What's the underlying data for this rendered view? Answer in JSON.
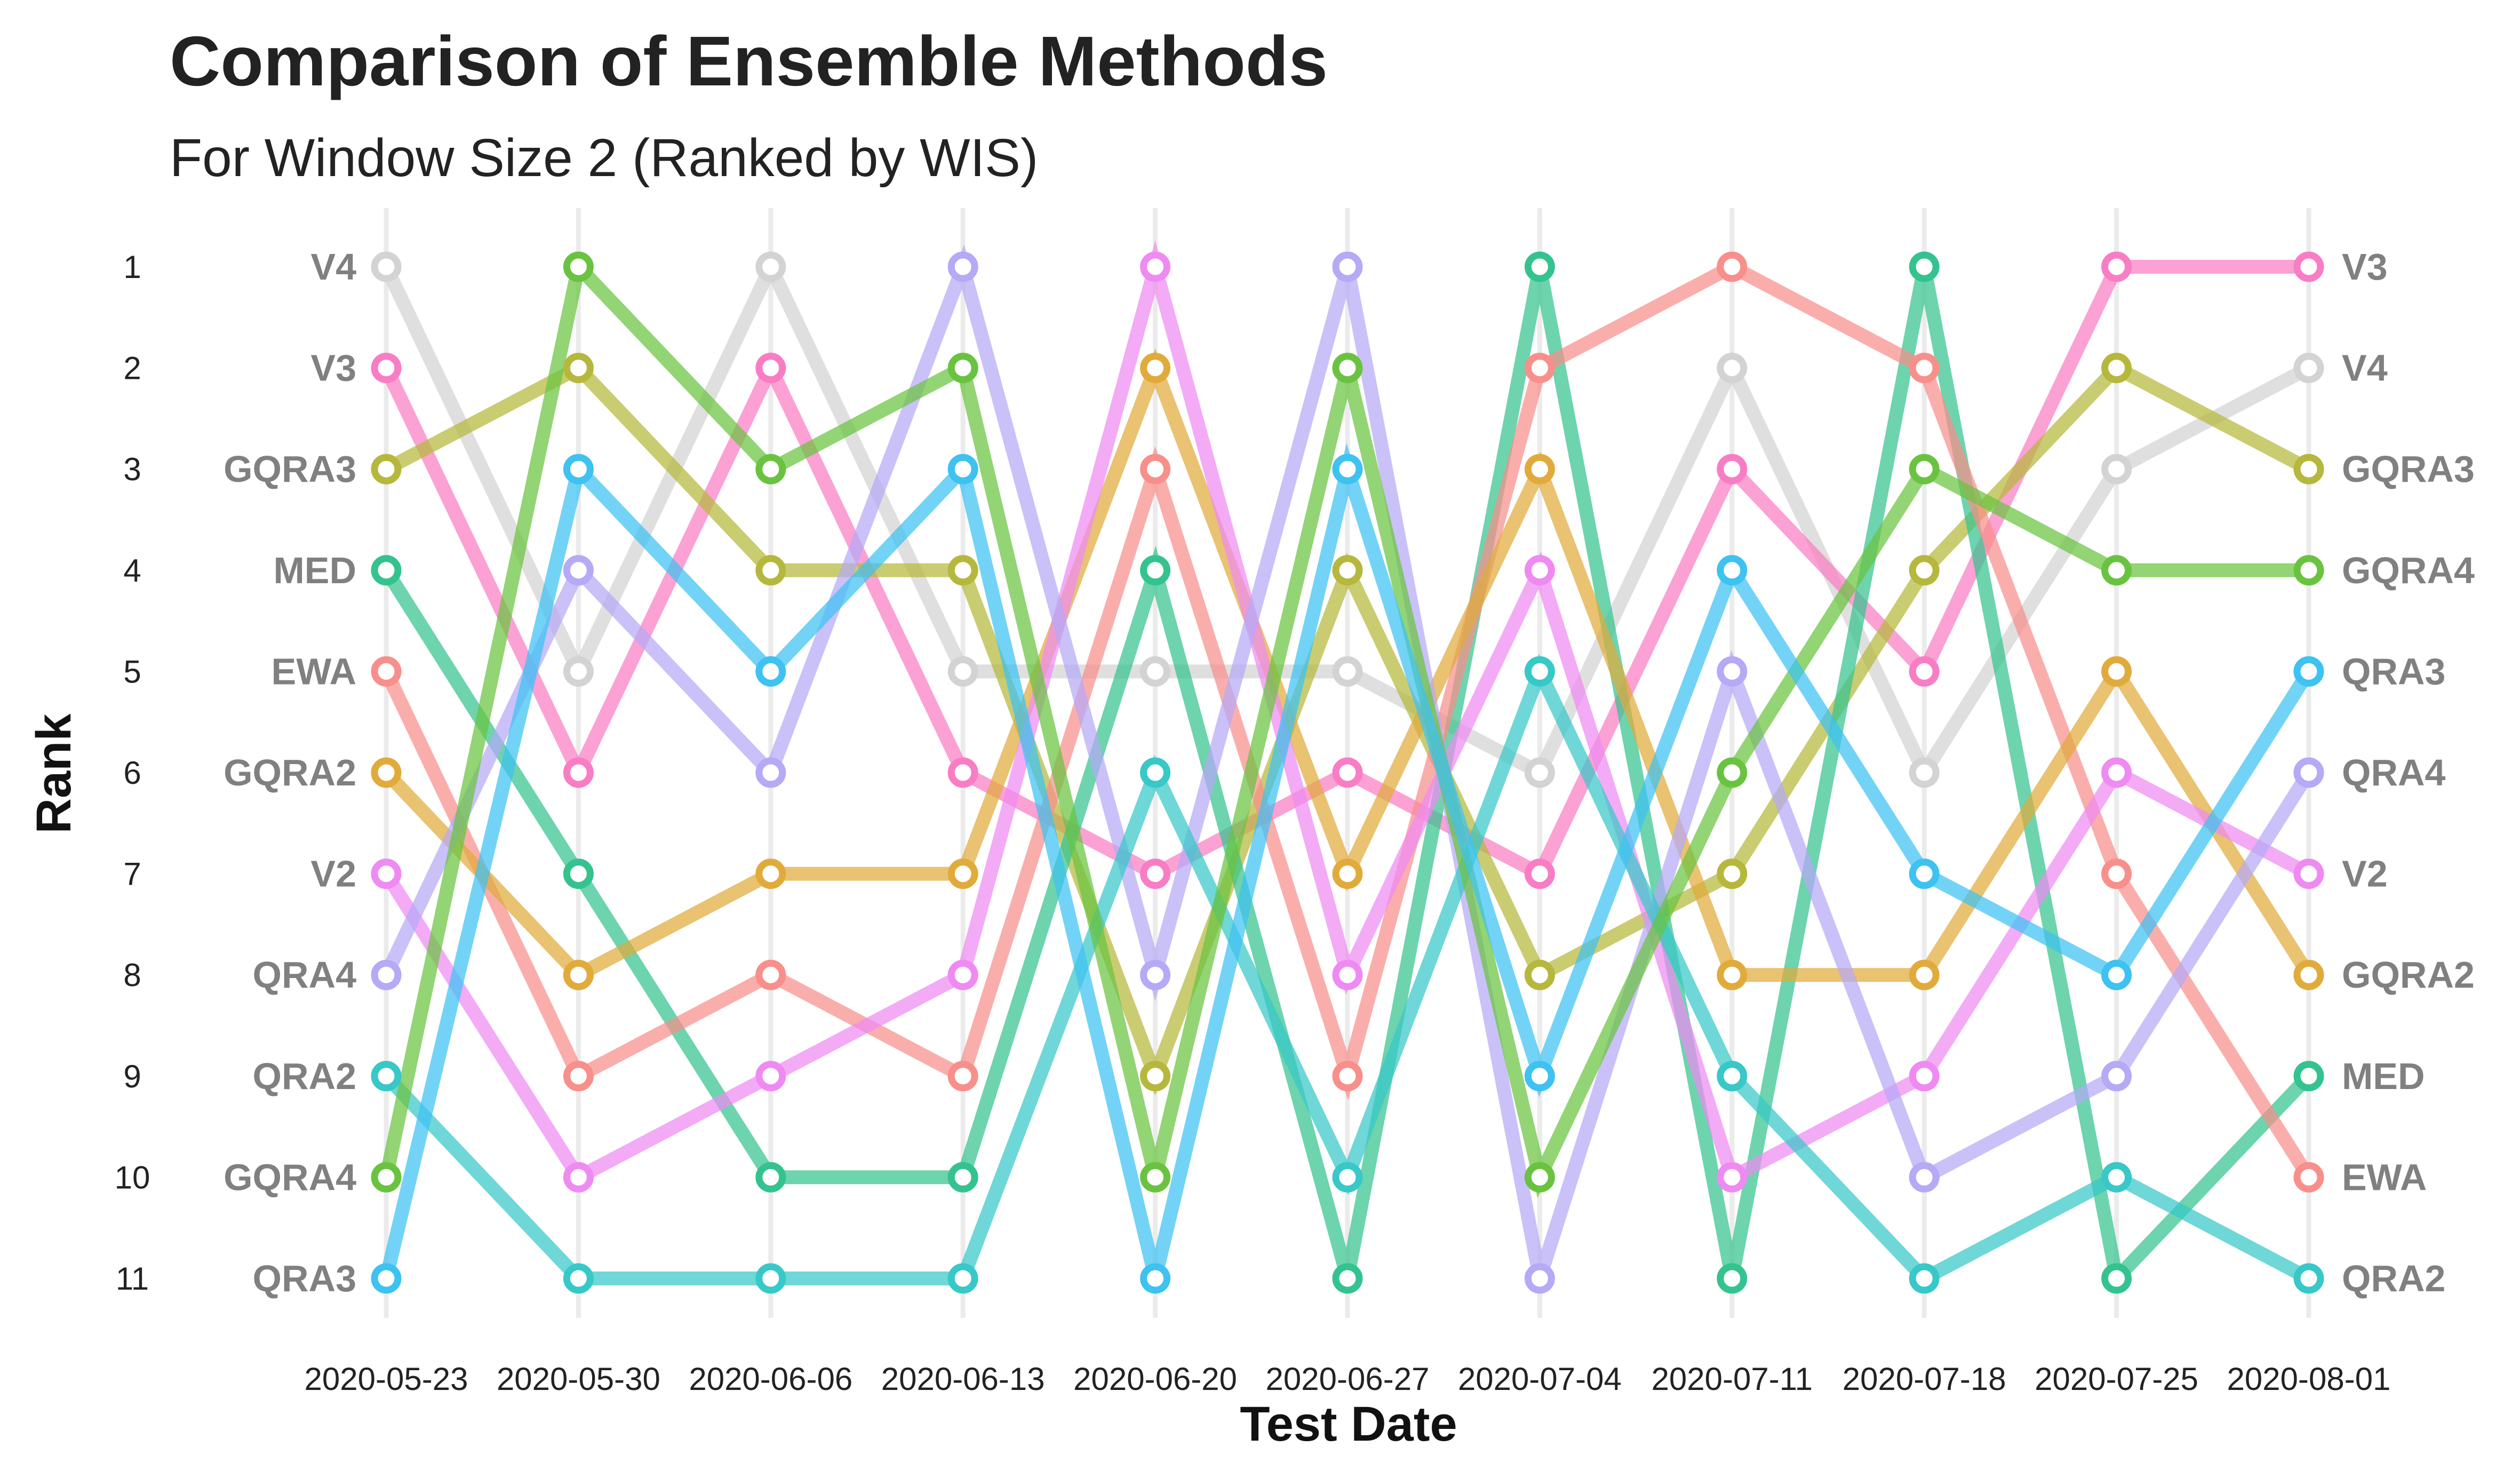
{
  "chart_data": {
    "type": "line",
    "title": "Comparison of Ensemble Methods",
    "subtitle": "For Window Size 2 (Ranked by WIS)",
    "xlabel": "Test Date",
    "ylabel": "Rank",
    "x": [
      "2020-05-23",
      "2020-05-30",
      "2020-06-06",
      "2020-06-13",
      "2020-06-20",
      "2020-06-27",
      "2020-07-04",
      "2020-07-11",
      "2020-07-18",
      "2020-07-25",
      "2020-08-01"
    ],
    "y_ticks": [
      "1",
      "2",
      "3",
      "4",
      "5",
      "6",
      "7",
      "8",
      "9",
      "10",
      "11"
    ],
    "ylim": [
      1,
      11
    ],
    "y_reversed": true,
    "grid": "vertical",
    "legend": "none (series names labelled at both line ends)",
    "series": [
      {
        "name": "V4",
        "color": "#d3d3d3",
        "values": [
          1,
          5,
          1,
          5,
          5,
          5,
          6,
          2,
          6,
          3,
          2
        ]
      },
      {
        "name": "V3",
        "color": "#f97dc4",
        "values": [
          2,
          6,
          2,
          6,
          7,
          6,
          7,
          3,
          5,
          1,
          1
        ]
      },
      {
        "name": "GQRA3",
        "color": "#b5b83c",
        "values": [
          3,
          2,
          4,
          4,
          9,
          4,
          8,
          7,
          4,
          2,
          3
        ]
      },
      {
        "name": "MED",
        "color": "#34c38f",
        "values": [
          4,
          7,
          10,
          10,
          4,
          11,
          1,
          11,
          1,
          11,
          9
        ]
      },
      {
        "name": "EWA",
        "color": "#f88f8b",
        "values": [
          5,
          9,
          8,
          9,
          3,
          9,
          2,
          1,
          2,
          7,
          10
        ]
      },
      {
        "name": "GQRA2",
        "color": "#e1ab3c",
        "values": [
          6,
          8,
          7,
          7,
          2,
          7,
          3,
          8,
          8,
          5,
          8
        ]
      },
      {
        "name": "V2",
        "color": "#ef8af3",
        "values": [
          7,
          10,
          9,
          8,
          1,
          8,
          4,
          10,
          9,
          6,
          7
        ]
      },
      {
        "name": "QRA4",
        "color": "#b6a9f6",
        "values": [
          8,
          4,
          6,
          1,
          8,
          1,
          11,
          5,
          10,
          9,
          6
        ]
      },
      {
        "name": "QRA2",
        "color": "#38c8c8",
        "values": [
          9,
          11,
          11,
          11,
          6,
          10,
          5,
          9,
          11,
          10,
          11
        ]
      },
      {
        "name": "GQRA4",
        "color": "#6ac340",
        "values": [
          10,
          1,
          3,
          2,
          10,
          2,
          10,
          6,
          3,
          4,
          4
        ]
      },
      {
        "name": "QRA3",
        "color": "#3dc2f2",
        "values": [
          11,
          3,
          5,
          3,
          11,
          3,
          9,
          4,
          7,
          8,
          5
        ]
      }
    ]
  }
}
